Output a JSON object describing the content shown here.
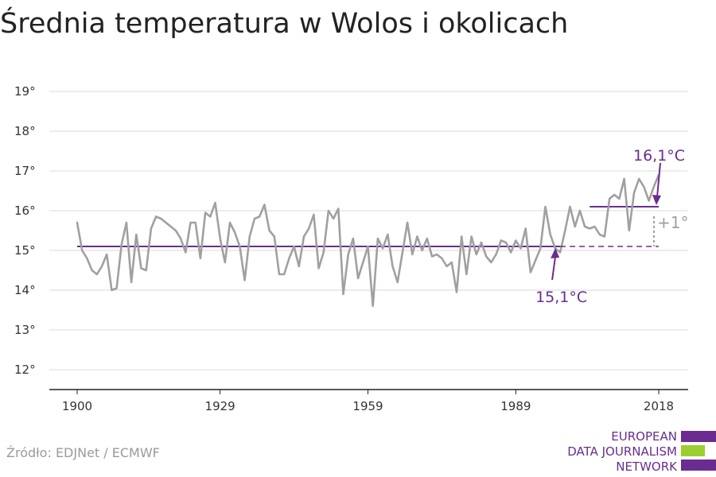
{
  "title": "Średnia temperatura w Wolos i okolicach",
  "source": "Źródło: EDJNet / ECMWF",
  "logo": {
    "lines": [
      "EUROPEAN",
      "DATA JOURNALISM",
      "NETWORK"
    ],
    "colors": {
      "purple": "#6a2c91",
      "green": "#9bcf2f"
    }
  },
  "colors": {
    "series": "#a0a0a0",
    "reference": "#6a2c91",
    "grid": "#d9d9d9",
    "axis": "#222222",
    "diff": "#a0a0a0"
  },
  "chart_data": {
    "type": "line",
    "title": "Średnia temperatura w Wolos i okolicach",
    "xlabel": "",
    "ylabel": "",
    "ylim": [
      11.5,
      19.5
    ],
    "xlim": [
      1900,
      2018
    ],
    "yticks": [
      12,
      13,
      14,
      15,
      16,
      17,
      18,
      19
    ],
    "ytick_labels": [
      "12°",
      "13°",
      "14°",
      "15°",
      "16°",
      "17°",
      "18°",
      "19°"
    ],
    "xticks": [
      1900,
      1929,
      1959,
      1989,
      2018
    ],
    "xtick_labels": [
      "1900",
      "1929",
      "1959",
      "1989",
      "2018"
    ],
    "grid": true,
    "series": [
      {
        "values_x_start": 1900,
        "x": [
          1900,
          1901,
          1902,
          1903,
          1904,
          1905,
          1906,
          1907,
          1908,
          1909,
          1910,
          1911,
          1912,
          1913,
          1914,
          1915,
          1916,
          1917,
          1918,
          1919,
          1920,
          1921,
          1922,
          1923,
          1924,
          1925,
          1926,
          1927,
          1928,
          1929,
          1930,
          1931,
          1932,
          1933,
          1934,
          1935,
          1936,
          1937,
          1938,
          1939,
          1940,
          1941,
          1942,
          1943,
          1944,
          1945,
          1946,
          1947,
          1948,
          1949,
          1950,
          1951,
          1952,
          1953,
          1954,
          1955,
          1956,
          1957,
          1958,
          1959,
          1960,
          1961,
          1962,
          1963,
          1964,
          1965,
          1966,
          1967,
          1968,
          1969,
          1970,
          1971,
          1972,
          1973,
          1974,
          1975,
          1976,
          1977,
          1978,
          1979,
          1980,
          1981,
          1982,
          1983,
          1984,
          1985,
          1986,
          1987,
          1988,
          1989,
          1990,
          1991,
          1992,
          1993,
          1994,
          1995,
          1996,
          1997,
          1998,
          1999,
          2000,
          2001,
          2002,
          2003,
          2004,
          2005,
          2006,
          2007,
          2008,
          2009,
          2010,
          2011,
          2012,
          2013,
          2014,
          2015,
          2016,
          2017,
          2018
        ],
        "y": [
          15.7,
          15.0,
          14.8,
          14.5,
          14.4,
          14.6,
          14.9,
          14.0,
          14.05,
          15.15,
          15.7,
          14.2,
          15.4,
          14.55,
          14.5,
          15.55,
          15.85,
          15.8,
          15.7,
          15.6,
          15.5,
          15.3,
          14.95,
          15.7,
          15.7,
          14.8,
          15.95,
          15.85,
          16.2,
          15.3,
          14.7,
          15.7,
          15.45,
          15.1,
          14.25,
          15.35,
          15.8,
          15.85,
          16.15,
          15.5,
          15.35,
          14.4,
          14.4,
          14.8,
          15.1,
          14.6,
          15.35,
          15.55,
          15.9,
          14.55,
          14.95,
          16.0,
          15.8,
          16.05,
          13.9,
          14.9,
          15.3,
          14.3,
          14.7,
          15.1,
          13.6,
          15.3,
          15.05,
          15.4,
          14.6,
          14.2,
          14.95,
          15.7,
          14.9,
          15.35,
          15.0,
          15.3,
          14.85,
          14.9,
          14.8,
          14.6,
          14.7,
          13.95,
          15.35,
          14.4,
          15.35,
          14.9,
          15.2,
          14.85,
          14.7,
          14.9,
          15.25,
          15.2,
          14.95,
          15.25,
          15.05,
          15.55,
          14.45,
          14.75,
          15.05,
          16.1,
          15.4,
          15.05,
          14.95,
          15.5,
          16.1,
          15.6,
          16.0,
          15.6,
          15.55,
          15.6,
          15.4,
          15.35,
          16.3,
          16.4,
          16.3,
          16.8,
          15.5,
          16.45,
          16.8,
          16.6,
          16.25,
          16.6,
          16.9
        ]
      }
    ],
    "reference_lines": [
      {
        "label": "15,1°C",
        "value": 15.1,
        "from": 1900,
        "to": 1998
      },
      {
        "label": "16,1°C",
        "value": 16.1,
        "from": 2004,
        "to": 2018
      }
    ],
    "difference_label": "+1°"
  }
}
